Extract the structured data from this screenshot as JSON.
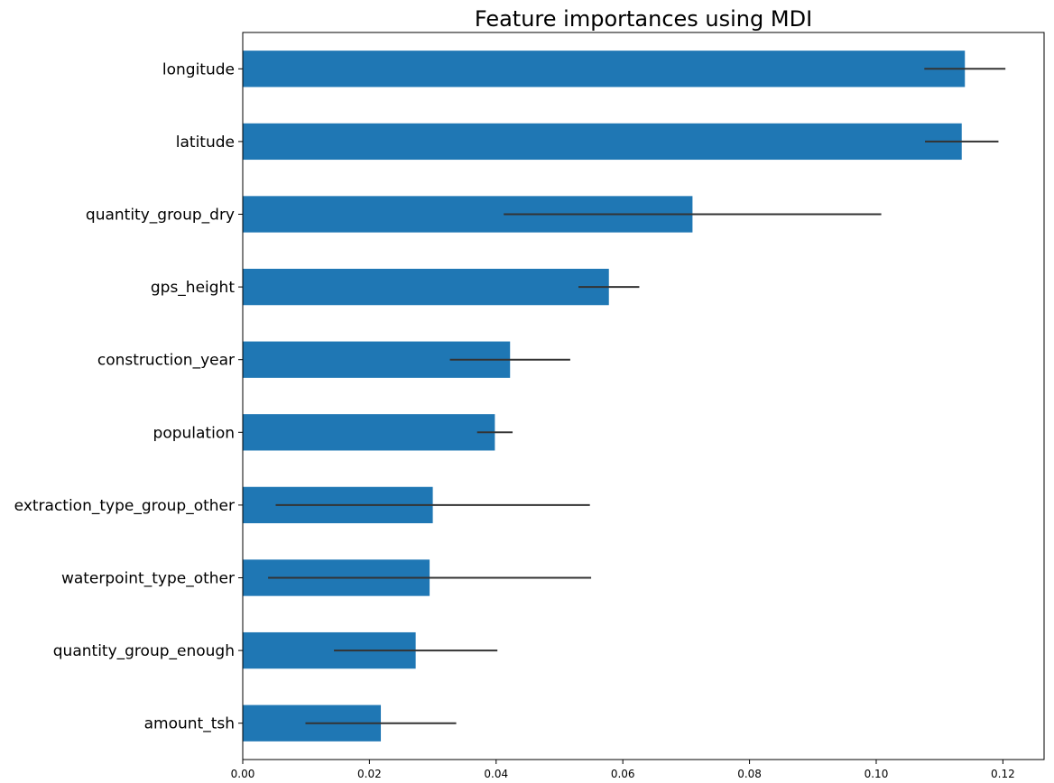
{
  "chart_data": {
    "type": "bar",
    "orientation": "horizontal",
    "title": "Feature importances using MDI",
    "xlabel": "",
    "ylabel": "",
    "categories": [
      "longitude",
      "latitude",
      "quantity_group_dry",
      "gps_height",
      "construction_year",
      "population",
      "extraction_type_group_other",
      "waterpoint_type_other",
      "quantity_group_enough",
      "amount_tsh"
    ],
    "values": [
      0.114,
      0.1135,
      0.071,
      0.0578,
      0.0422,
      0.0398,
      0.03,
      0.0295,
      0.0273,
      0.0218
    ],
    "errors": [
      0.0064,
      0.0058,
      0.0298,
      0.0048,
      0.0095,
      0.0028,
      0.0248,
      0.0255,
      0.0129,
      0.0119
    ],
    "xlim": [
      0,
      0.1265
    ],
    "xticks": [
      {
        "value": 0.0,
        "label": "0.00"
      },
      {
        "value": 0.02,
        "label": "0.02"
      },
      {
        "value": 0.04,
        "label": "0.04"
      },
      {
        "value": 0.06,
        "label": "0.06"
      },
      {
        "value": 0.08,
        "label": "0.08"
      },
      {
        "value": 0.1,
        "label": "0.10"
      },
      {
        "value": 0.12,
        "label": "0.12"
      }
    ],
    "grid": false,
    "legend": "none",
    "bar_color": "#1f77b4",
    "error_color": "#333333"
  }
}
